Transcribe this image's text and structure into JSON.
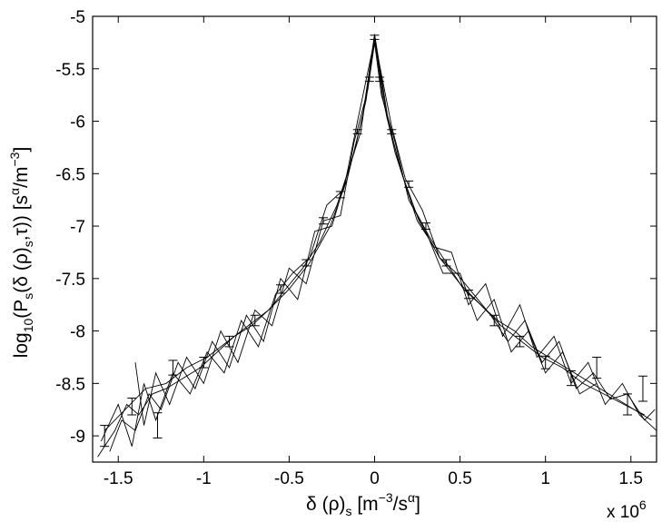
{
  "chart_data": {
    "type": "line",
    "title": "",
    "xlabel": {
      "delta": "δ (ρ)",
      "sub": "s",
      "bracket_open": " [m",
      "sup1": "−3",
      "mid": "/s",
      "sup2": "α",
      "bracket_close": "]"
    },
    "ylabel": {
      "log": "log",
      "log_sub": "10",
      "p_open": "(P",
      "p_sub": "s",
      "arg1": "(δ (ρ)",
      "arg_sub": "s",
      "arg2": ",τ)) [s",
      "sup1": "α",
      "mid": "/m",
      "sup2": "−3",
      "close": "]"
    },
    "x_multiplier": {
      "base": "x 10",
      "exp": "6"
    },
    "x_scale_factor": 1000000,
    "xlim": [
      -1.65,
      1.65
    ],
    "ylim": [
      -9.25,
      -5.0
    ],
    "x_ticks": [
      -1.5,
      -1,
      -0.5,
      0,
      0.5,
      1,
      1.5
    ],
    "x_tick_labels": [
      "-1.5",
      "-1",
      "-0.5",
      "0",
      "0.5",
      "1",
      "1.5"
    ],
    "y_ticks": [
      -9,
      -8.5,
      -8,
      -7.5,
      -7,
      -6.5,
      -6,
      -5.5,
      -5
    ],
    "y_tick_labels": [
      "-9",
      "-8.5",
      "-8",
      "-7.5",
      "-7",
      "-6.5",
      "-6",
      "-5.5",
      "-5"
    ],
    "grid": false,
    "legend": "none",
    "line_color": "#000000",
    "series": [
      {
        "values": [
          [
            -1.62,
            -9.2
          ],
          [
            -1.52,
            -8.95
          ],
          [
            -1.45,
            -8.7
          ],
          [
            -1.38,
            -8.8
          ],
          [
            -1.3,
            -8.6
          ],
          [
            -1.22,
            -8.55
          ],
          [
            -1.12,
            -8.45
          ],
          [
            -1.02,
            -8.35
          ],
          [
            -0.92,
            -8.2
          ],
          [
            -0.82,
            -8.05
          ],
          [
            -0.72,
            -7.95
          ],
          [
            -0.62,
            -7.8
          ],
          [
            -0.52,
            -7.6
          ],
          [
            -0.42,
            -7.4
          ],
          [
            -0.32,
            -7.15
          ],
          [
            -0.22,
            -6.8
          ],
          [
            -0.12,
            -6.3
          ],
          [
            -0.05,
            -5.8
          ],
          [
            0.0,
            -5.2
          ],
          [
            0.05,
            -5.8
          ],
          [
            0.12,
            -6.3
          ],
          [
            0.22,
            -6.8
          ],
          [
            0.32,
            -7.1
          ],
          [
            0.42,
            -7.35
          ],
          [
            0.52,
            -7.6
          ],
          [
            0.62,
            -7.75
          ],
          [
            0.72,
            -7.9
          ],
          [
            0.82,
            -8.0
          ],
          [
            0.92,
            -8.15
          ],
          [
            1.02,
            -8.25
          ],
          [
            1.12,
            -8.35
          ],
          [
            1.22,
            -8.45
          ],
          [
            1.32,
            -8.55
          ],
          [
            1.42,
            -8.65
          ],
          [
            1.52,
            -8.75
          ],
          [
            1.62,
            -8.85
          ]
        ]
      },
      {
        "values": [
          [
            -1.55,
            -9.15
          ],
          [
            -1.48,
            -8.85
          ],
          [
            -1.4,
            -8.95
          ],
          [
            -1.32,
            -8.6
          ],
          [
            -1.25,
            -8.75
          ],
          [
            -1.15,
            -8.3
          ],
          [
            -1.05,
            -8.55
          ],
          [
            -0.95,
            -8.1
          ],
          [
            -0.85,
            -8.35
          ],
          [
            -0.75,
            -7.85
          ],
          [
            -0.65,
            -8.1
          ],
          [
            -0.55,
            -7.5
          ],
          [
            -0.45,
            -7.7
          ],
          [
            -0.35,
            -7.05
          ],
          [
            -0.25,
            -7.0
          ],
          [
            -0.15,
            -6.45
          ],
          [
            -0.08,
            -6.1
          ],
          [
            0.0,
            -5.17
          ],
          [
            0.08,
            -6.0
          ],
          [
            0.15,
            -6.45
          ],
          [
            0.25,
            -6.95
          ],
          [
            0.35,
            -7.2
          ],
          [
            0.45,
            -7.25
          ],
          [
            0.55,
            -7.75
          ],
          [
            0.65,
            -7.55
          ],
          [
            0.75,
            -8.05
          ],
          [
            0.85,
            -7.75
          ],
          [
            0.95,
            -8.25
          ],
          [
            1.05,
            -8.05
          ],
          [
            1.15,
            -8.5
          ],
          [
            1.25,
            -8.3
          ],
          [
            1.35,
            -8.7
          ],
          [
            1.45,
            -8.5
          ],
          [
            1.55,
            -8.8
          ],
          [
            1.65,
            -8.95
          ]
        ]
      },
      {
        "values": [
          [
            -1.6,
            -9.05
          ],
          [
            -1.5,
            -8.7
          ],
          [
            -1.42,
            -9.1
          ],
          [
            -1.35,
            -8.5
          ],
          [
            -1.28,
            -8.85
          ],
          [
            -1.18,
            -8.4
          ],
          [
            -1.08,
            -8.6
          ],
          [
            -0.98,
            -8.2
          ],
          [
            -0.88,
            -8.4
          ],
          [
            -0.78,
            -7.9
          ],
          [
            -0.68,
            -8.15
          ],
          [
            -0.58,
            -7.65
          ],
          [
            -0.48,
            -7.45
          ],
          [
            -0.38,
            -7.3
          ],
          [
            -0.28,
            -6.8
          ],
          [
            -0.18,
            -6.65
          ],
          [
            -0.1,
            -6.0
          ],
          [
            0.0,
            -5.22
          ],
          [
            0.1,
            -6.05
          ],
          [
            0.18,
            -6.55
          ],
          [
            0.28,
            -6.85
          ],
          [
            0.38,
            -7.3
          ],
          [
            0.48,
            -7.45
          ],
          [
            0.58,
            -7.65
          ],
          [
            0.68,
            -7.85
          ],
          [
            0.78,
            -8.1
          ],
          [
            0.88,
            -7.9
          ],
          [
            0.98,
            -8.3
          ],
          [
            1.08,
            -8.1
          ],
          [
            1.18,
            -8.55
          ],
          [
            1.28,
            -8.4
          ],
          [
            1.38,
            -8.65
          ],
          [
            1.48,
            -8.6
          ],
          [
            1.58,
            -8.85
          ],
          [
            1.64,
            -8.75
          ]
        ]
      },
      {
        "values": [
          [
            -1.4,
            -8.3
          ],
          [
            -1.35,
            -8.9
          ],
          [
            -1.28,
            -8.4
          ],
          [
            -1.2,
            -8.7
          ],
          [
            -1.1,
            -8.25
          ],
          [
            -1.0,
            -8.5
          ],
          [
            -0.9,
            -8.0
          ],
          [
            -0.8,
            -8.3
          ],
          [
            -0.7,
            -7.8
          ],
          [
            -0.6,
            -7.95
          ],
          [
            -0.5,
            -7.4
          ],
          [
            -0.4,
            -7.55
          ],
          [
            -0.3,
            -6.95
          ],
          [
            -0.2,
            -6.9
          ],
          [
            -0.12,
            -6.2
          ],
          [
            -0.04,
            -5.7
          ],
          [
            0.0,
            -5.25
          ],
          [
            0.04,
            -5.75
          ],
          [
            0.12,
            -6.2
          ],
          [
            0.2,
            -6.75
          ],
          [
            0.3,
            -7.05
          ],
          [
            0.4,
            -7.45
          ],
          [
            0.5,
            -7.45
          ],
          [
            0.6,
            -7.9
          ],
          [
            0.7,
            -7.7
          ],
          [
            0.8,
            -8.2
          ],
          [
            0.9,
            -8.0
          ],
          [
            1.0,
            -8.4
          ],
          [
            1.1,
            -8.2
          ],
          [
            1.2,
            -8.6
          ],
          [
            1.3,
            -8.5
          ]
        ]
      },
      {
        "values": [
          [
            -1.58,
            -8.95
          ],
          [
            -1.46,
            -8.75
          ],
          [
            -1.34,
            -8.55
          ],
          [
            -1.22,
            -8.5
          ],
          [
            -1.1,
            -8.35
          ],
          [
            -0.98,
            -8.25
          ],
          [
            -0.86,
            -8.1
          ],
          [
            -0.74,
            -7.95
          ],
          [
            -0.62,
            -7.8
          ],
          [
            -0.5,
            -7.6
          ],
          [
            -0.38,
            -7.35
          ],
          [
            -0.26,
            -7.0
          ],
          [
            -0.16,
            -6.55
          ],
          [
            -0.07,
            -5.95
          ],
          [
            0.0,
            -5.19
          ],
          [
            0.07,
            -5.95
          ],
          [
            0.16,
            -6.5
          ],
          [
            0.26,
            -6.95
          ],
          [
            0.38,
            -7.3
          ],
          [
            0.5,
            -7.55
          ],
          [
            0.62,
            -7.75
          ],
          [
            0.74,
            -7.95
          ],
          [
            0.86,
            -8.1
          ],
          [
            0.98,
            -8.25
          ],
          [
            1.1,
            -8.35
          ],
          [
            1.22,
            -8.5
          ],
          [
            1.34,
            -8.6
          ],
          [
            1.46,
            -8.7
          ],
          [
            1.58,
            -8.8
          ]
        ]
      }
    ],
    "error_bars": [
      {
        "x": -1.58,
        "y": -9.0,
        "err": 0.1
      },
      {
        "x": -1.42,
        "y": -8.72,
        "err": 0.08
      },
      {
        "x": -1.27,
        "y": -8.9,
        "err": 0.12
      },
      {
        "x": -1.18,
        "y": -8.35,
        "err": 0.07
      },
      {
        "x": -1.0,
        "y": -8.3,
        "err": 0.05
      },
      {
        "x": -0.85,
        "y": -8.1,
        "err": 0.05
      },
      {
        "x": -0.7,
        "y": -7.9,
        "err": 0.05
      },
      {
        "x": -0.55,
        "y": -7.6,
        "err": 0.04
      },
      {
        "x": -0.4,
        "y": -7.35,
        "err": 0.03
      },
      {
        "x": -0.3,
        "y": -6.95,
        "err": 0.03
      },
      {
        "x": -0.2,
        "y": -6.7,
        "err": 0.03
      },
      {
        "x": -0.1,
        "y": -6.1,
        "err": 0.02
      },
      {
        "x": -0.03,
        "y": -5.6,
        "err": 0.02
      },
      {
        "x": 0.0,
        "y": -5.2,
        "err": 0.02
      },
      {
        "x": 0.03,
        "y": -5.6,
        "err": 0.02
      },
      {
        "x": 0.1,
        "y": -6.1,
        "err": 0.02
      },
      {
        "x": 0.2,
        "y": -6.6,
        "err": 0.03
      },
      {
        "x": 0.3,
        "y": -7.0,
        "err": 0.03
      },
      {
        "x": 0.42,
        "y": -7.35,
        "err": 0.03
      },
      {
        "x": 0.55,
        "y": -7.65,
        "err": 0.04
      },
      {
        "x": 0.7,
        "y": -7.9,
        "err": 0.05
      },
      {
        "x": 0.85,
        "y": -8.1,
        "err": 0.05
      },
      {
        "x": 1.0,
        "y": -8.3,
        "err": 0.06
      },
      {
        "x": 1.15,
        "y": -8.45,
        "err": 0.07
      },
      {
        "x": 1.3,
        "y": -8.35,
        "err": 0.1
      },
      {
        "x": 1.48,
        "y": -8.7,
        "err": 0.1
      },
      {
        "x": 1.57,
        "y": -8.55,
        "err": 0.12
      }
    ]
  }
}
